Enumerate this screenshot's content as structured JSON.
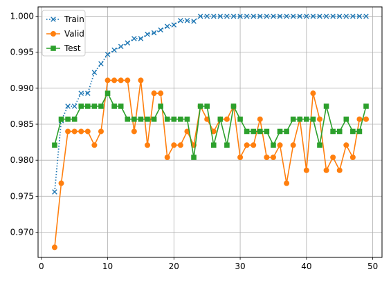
{
  "chart_data": {
    "type": "line",
    "title": "",
    "xlabel": "",
    "ylabel": "",
    "xlim": [
      -0.5,
      51.4
    ],
    "ylim": [
      0.9665,
      1.0013
    ],
    "xticks": [
      0,
      10,
      20,
      30,
      40,
      50
    ],
    "xtick_labels": [
      "0",
      "10",
      "20",
      "30",
      "40",
      "50"
    ],
    "yticks": [
      0.97,
      0.975,
      0.98,
      0.985,
      0.99,
      0.995,
      1.0
    ],
    "ytick_labels": [
      "0.970",
      "0.975",
      "0.980",
      "0.985",
      "0.990",
      "0.995",
      "1.000"
    ],
    "grid": true,
    "legend_position": "upper-left",
    "x": [
      2,
      3,
      4,
      5,
      6,
      7,
      8,
      9,
      10,
      11,
      12,
      13,
      14,
      15,
      16,
      17,
      18,
      19,
      20,
      21,
      22,
      23,
      24,
      25,
      26,
      27,
      28,
      29,
      30,
      31,
      32,
      33,
      34,
      35,
      36,
      37,
      38,
      39,
      40,
      41,
      42,
      43,
      44,
      45,
      46,
      47,
      48,
      49
    ],
    "series": [
      {
        "name": "Train",
        "color": "#1f77b4",
        "linestyle": "dotted",
        "marker": "x",
        "values": [
          0.9756,
          0.9855,
          0.9875,
          0.9875,
          0.9893,
          0.9893,
          0.9922,
          0.9934,
          0.9947,
          0.9953,
          0.9958,
          0.9963,
          0.9969,
          0.9969,
          0.9975,
          0.9977,
          0.9981,
          0.9986,
          0.9988,
          0.9994,
          0.9994,
          0.9993,
          1.0,
          1.0,
          1.0,
          1.0,
          1.0,
          1.0,
          1.0,
          1.0,
          1.0,
          1.0,
          1.0,
          1.0,
          1.0,
          1.0,
          1.0,
          1.0,
          1.0,
          1.0,
          1.0,
          1.0,
          1.0,
          1.0,
          1.0,
          1.0,
          1.0,
          1.0
        ]
      },
      {
        "name": "Valid",
        "color": "#ff7f0e",
        "linestyle": "solid",
        "marker": "circle",
        "values": [
          0.9679,
          0.9768,
          0.984,
          0.984,
          0.984,
          0.984,
          0.9821,
          0.984,
          0.9911,
          0.9911,
          0.9911,
          0.9911,
          0.984,
          0.9911,
          0.9821,
          0.9893,
          0.9893,
          0.9804,
          0.9821,
          0.9821,
          0.984,
          0.9821,
          0.9875,
          0.9857,
          0.984,
          0.9857,
          0.9857,
          0.9875,
          0.9804,
          0.9821,
          0.9821,
          0.9857,
          0.9804,
          0.9804,
          0.9821,
          0.9768,
          0.9821,
          0.9857,
          0.9786,
          0.9893,
          0.9857,
          0.9786,
          0.9804,
          0.9786,
          0.9821,
          0.9804,
          0.9857,
          0.9857
        ]
      },
      {
        "name": "Test",
        "color": "#2ca02c",
        "linestyle": "solid",
        "marker": "square",
        "values": [
          0.9821,
          0.9857,
          0.9857,
          0.9857,
          0.9875,
          0.9875,
          0.9875,
          0.9875,
          0.9893,
          0.9875,
          0.9875,
          0.9857,
          0.9857,
          0.9857,
          0.9857,
          0.9857,
          0.9875,
          0.9857,
          0.9857,
          0.9857,
          0.9857,
          0.9804,
          0.9875,
          0.9875,
          0.9821,
          0.9857,
          0.9821,
          0.9875,
          0.9857,
          0.984,
          0.984,
          0.984,
          0.984,
          0.9821,
          0.984,
          0.984,
          0.9857,
          0.9857,
          0.9857,
          0.9857,
          0.9821,
          0.9875,
          0.984,
          0.984,
          0.9857,
          0.984,
          0.984,
          0.9875
        ]
      }
    ]
  }
}
